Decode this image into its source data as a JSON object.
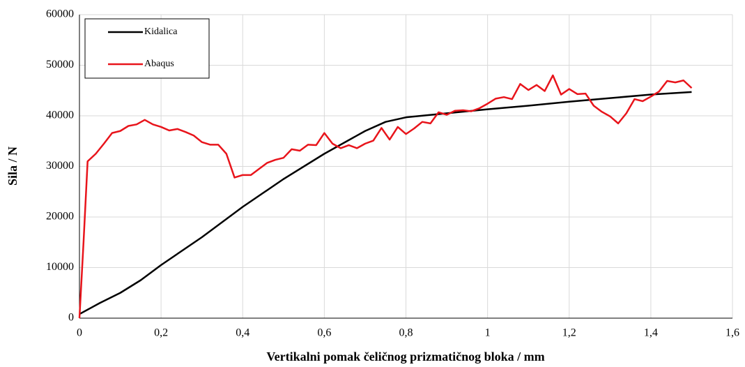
{
  "chart_data": {
    "type": "line",
    "xlabel": "Vertikalni pomak čeličnog prizmatičnog bloka / mm",
    "ylabel": "Sila / N",
    "xlim": [
      0,
      1.6
    ],
    "xticks": [
      0,
      {
        "value": 0.2,
        "label": "0,2"
      },
      {
        "value": 0.4,
        "label": "0,4"
      },
      {
        "value": 0.6,
        "label": "0,6"
      },
      {
        "value": 0.8,
        "label": "0,8"
      },
      1,
      {
        "value": 1.2,
        "label": "1,2"
      },
      {
        "value": 1.4,
        "label": "1,4"
      },
      {
        "value": 1.6,
        "label": "1,6"
      }
    ],
    "ylim": [
      0,
      60000
    ],
    "yticks": [
      0,
      10000,
      20000,
      30000,
      40000,
      50000,
      60000
    ],
    "grid": true,
    "legend": "upper left",
    "series": [
      {
        "name": "Kidalica",
        "color": "#000000",
        "x": [
          0,
          0.05,
          0.1,
          0.15,
          0.2,
          0.3,
          0.4,
          0.5,
          0.6,
          0.7,
          0.75,
          0.8,
          0.9,
          1.0,
          1.1,
          1.2,
          1.3,
          1.4,
          1.5
        ],
        "values": [
          800,
          3000,
          5000,
          7500,
          10500,
          16000,
          22000,
          27500,
          32500,
          37000,
          38800,
          39700,
          40500,
          41300,
          42000,
          42800,
          43500,
          44200,
          44700
        ]
      },
      {
        "name": "Abaqus",
        "color": "#e8141b",
        "x": [
          0,
          0.01,
          0.02,
          0.04,
          0.06,
          0.08,
          0.1,
          0.12,
          0.14,
          0.16,
          0.18,
          0.2,
          0.22,
          0.24,
          0.26,
          0.28,
          0.3,
          0.32,
          0.34,
          0.36,
          0.38,
          0.4,
          0.42,
          0.44,
          0.46,
          0.48,
          0.5,
          0.52,
          0.54,
          0.56,
          0.58,
          0.6,
          0.62,
          0.64,
          0.66,
          0.68,
          0.7,
          0.72,
          0.74,
          0.76,
          0.78,
          0.8,
          0.82,
          0.84,
          0.86,
          0.88,
          0.9,
          0.92,
          0.94,
          0.96,
          0.98,
          1.0,
          1.02,
          1.04,
          1.06,
          1.08,
          1.1,
          1.12,
          1.14,
          1.16,
          1.18,
          1.2,
          1.22,
          1.24,
          1.26,
          1.28,
          1.3,
          1.32,
          1.34,
          1.36,
          1.38,
          1.4,
          1.42,
          1.44,
          1.46,
          1.48,
          1.5
        ],
        "values": [
          0,
          15000,
          31000,
          32500,
          34500,
          36600,
          37000,
          38000,
          38300,
          39200,
          38300,
          37800,
          37100,
          37400,
          36800,
          36100,
          34800,
          34300,
          34300,
          32500,
          27800,
          28300,
          28300,
          29500,
          30700,
          31300,
          31700,
          33400,
          33100,
          34300,
          34200,
          36600,
          34500,
          33600,
          34200,
          33600,
          34500,
          35100,
          37600,
          35300,
          37800,
          36400,
          37500,
          38800,
          38500,
          40700,
          40200,
          41000,
          41100,
          40900,
          41500,
          42400,
          43400,
          43700,
          43300,
          46300,
          45100,
          46100,
          44900,
          48000,
          44200,
          45300,
          44300,
          44400,
          42000,
          40800,
          39900,
          38500,
          40500,
          43300,
          42900,
          43800,
          44800,
          46900,
          46600,
          47000,
          45500
        ]
      }
    ]
  }
}
